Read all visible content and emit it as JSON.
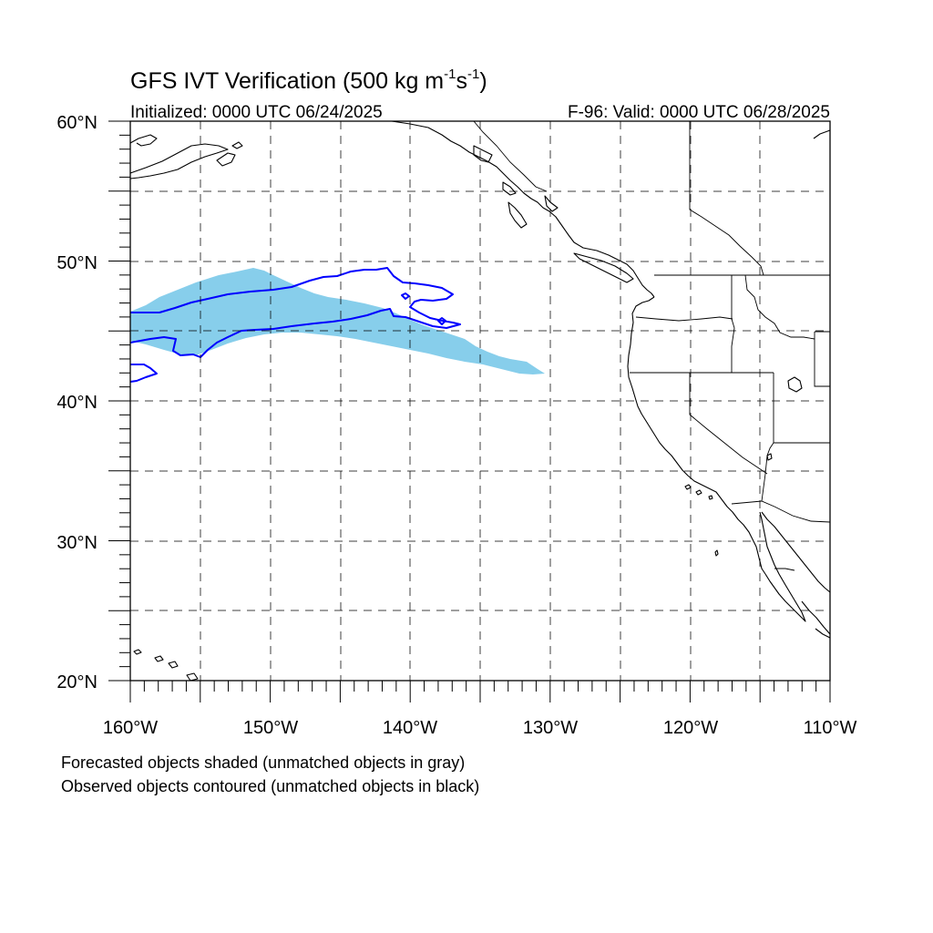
{
  "title_main": "GFS IVT Verification (500 kg m",
  "title_exp1": "-1",
  "title_mid": "s",
  "title_exp2": "-1",
  "title_end": ")",
  "initialized": "Initialized: 0000 UTC 06/24/2025",
  "valid": "F-96: Valid: 0000 UTC 06/28/2025",
  "lat_labels": [
    "60°N",
    "50°N",
    "40°N",
    "30°N",
    "20°N"
  ],
  "lon_labels": [
    "160°W",
    "150°W",
    "140°W",
    "130°W",
    "120°W",
    "110°W"
  ],
  "legend_line1": "Forecasted objects shaded (unmatched objects in gray)",
  "legend_line2": "Observed objects contoured (unmatched objects in black)",
  "colors": {
    "forecast_fill": "#87ceeb",
    "observed_contour": "#0000ff",
    "coastline": "#000000"
  },
  "map_extent": {
    "lon_min": -160,
    "lon_max": -110,
    "lat_min": 20,
    "lat_max": 60,
    "grid_spacing_deg": 5
  }
}
